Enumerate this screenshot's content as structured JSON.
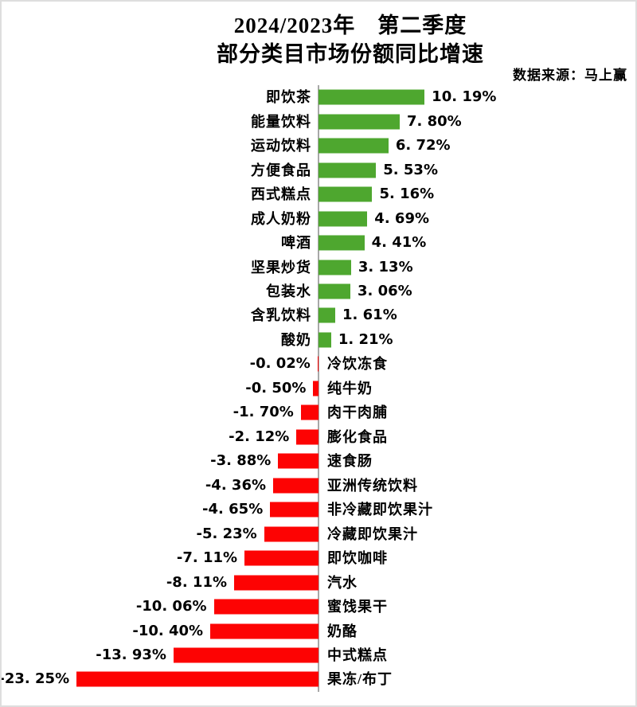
{
  "title": {
    "line1": "2024/2023年　第二季度",
    "line2": "部分类目市场份额同比增速"
  },
  "source": "数据来源：马上赢",
  "chart_data": {
    "type": "bar",
    "orientation": "horizontal",
    "title": "2024/2023年 第二季度 部分类目市场份额同比增速",
    "xlabel": "",
    "ylabel": "",
    "xlim": [
      -30.5,
      30.8
    ],
    "grid": false,
    "legend": "none",
    "value_suffix": "%",
    "positive_color": "#4EA72F",
    "negative_color": "#FD0303",
    "axis_color": "#a8a8a8",
    "categories": [
      "即饮茶",
      "能量饮料",
      "运动饮料",
      "方便食品",
      "西式糕点",
      "成人奶粉",
      "啤酒",
      "坚果炒货",
      "包装水",
      "含乳饮料",
      "酸奶",
      "冷饮冻食",
      "纯牛奶",
      "肉干肉脯",
      "膨化食品",
      "速食肠",
      "亚洲传统饮料",
      "非冷藏即饮果汁",
      "冷藏即饮果汁",
      "即饮咖啡",
      "汽水",
      "蜜饯果干",
      "奶酪",
      "中式糕点",
      "果冻/布丁"
    ],
    "values": [
      10.19,
      7.8,
      6.72,
      5.53,
      5.16,
      4.69,
      4.41,
      3.13,
      3.06,
      1.61,
      1.21,
      -0.02,
      -0.5,
      -1.7,
      -2.12,
      -3.88,
      -4.36,
      -4.65,
      -5.23,
      -7.11,
      -8.11,
      -10.06,
      -10.4,
      -13.93,
      -23.25
    ],
    "value_labels": [
      "10. 19%",
      "7. 80%",
      "6. 72%",
      "5. 53%",
      "5. 16%",
      "4. 69%",
      "4. 41%",
      "3. 13%",
      "3. 06%",
      "1. 61%",
      "1. 21%",
      "-0. 02%",
      "-0. 50%",
      "-1. 70%",
      "-2. 12%",
      "-3. 88%",
      "-4. 36%",
      "-4. 65%",
      "-5. 23%",
      "-7. 11%",
      "-8. 11%",
      "-10. 06%",
      "-10. 40%",
      "-13. 93%",
      "-23. 25%"
    ]
  }
}
